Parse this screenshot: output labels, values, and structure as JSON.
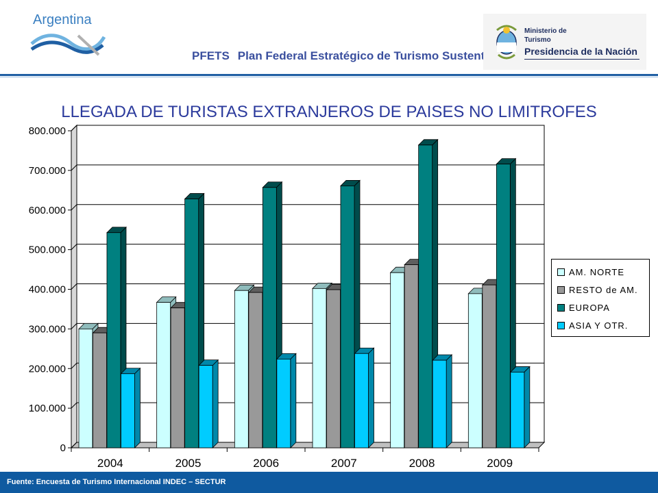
{
  "header": {
    "brand": "Argentina",
    "plan_acronym": "PFETS",
    "plan_name": "Plan Federal Estratégico de Turismo Sustentable",
    "ministry_line1": "Ministerio de",
    "ministry_line2": "Turismo",
    "ministry_line3": "Presidencia de la Nación"
  },
  "footer": {
    "source": "Fuente: Encuesta de Turismo Internacional INDEC – SECTUR"
  },
  "colors": {
    "am_norte": "#ccffff",
    "resto_am": "#999999",
    "europa": "#008080",
    "asia": "#00ccff",
    "title": "#2b3a9c",
    "footer": "#0f5aa0"
  },
  "chart_data": {
    "type": "bar",
    "title": "LLEGADA DE TURISTAS EXTRANJEROS DE PAISES NO LIMITROFES",
    "categories": [
      "2004",
      "2005",
      "2006",
      "2007",
      "2008",
      "2009"
    ],
    "series": [
      {
        "name": "AM. NORTE",
        "values": [
          300000,
          367000,
          397000,
          402000,
          442000,
          389000
        ]
      },
      {
        "name": "RESTO de AM.",
        "values": [
          290000,
          353000,
          392000,
          399000,
          462000,
          411000
        ]
      },
      {
        "name": "EUROPA",
        "values": [
          543000,
          628000,
          657000,
          661000,
          764000,
          716000
        ]
      },
      {
        "name": "ASIA Y OTR.",
        "values": [
          187000,
          208000,
          224000,
          238000,
          221000,
          191000
        ]
      }
    ],
    "ylim": [
      0,
      800000
    ],
    "yticks": [
      "0",
      "100.000",
      "200.000",
      "300.000",
      "400.000",
      "500.000",
      "600.000",
      "700.000",
      "800.000"
    ],
    "grid": true,
    "legend": "right"
  }
}
